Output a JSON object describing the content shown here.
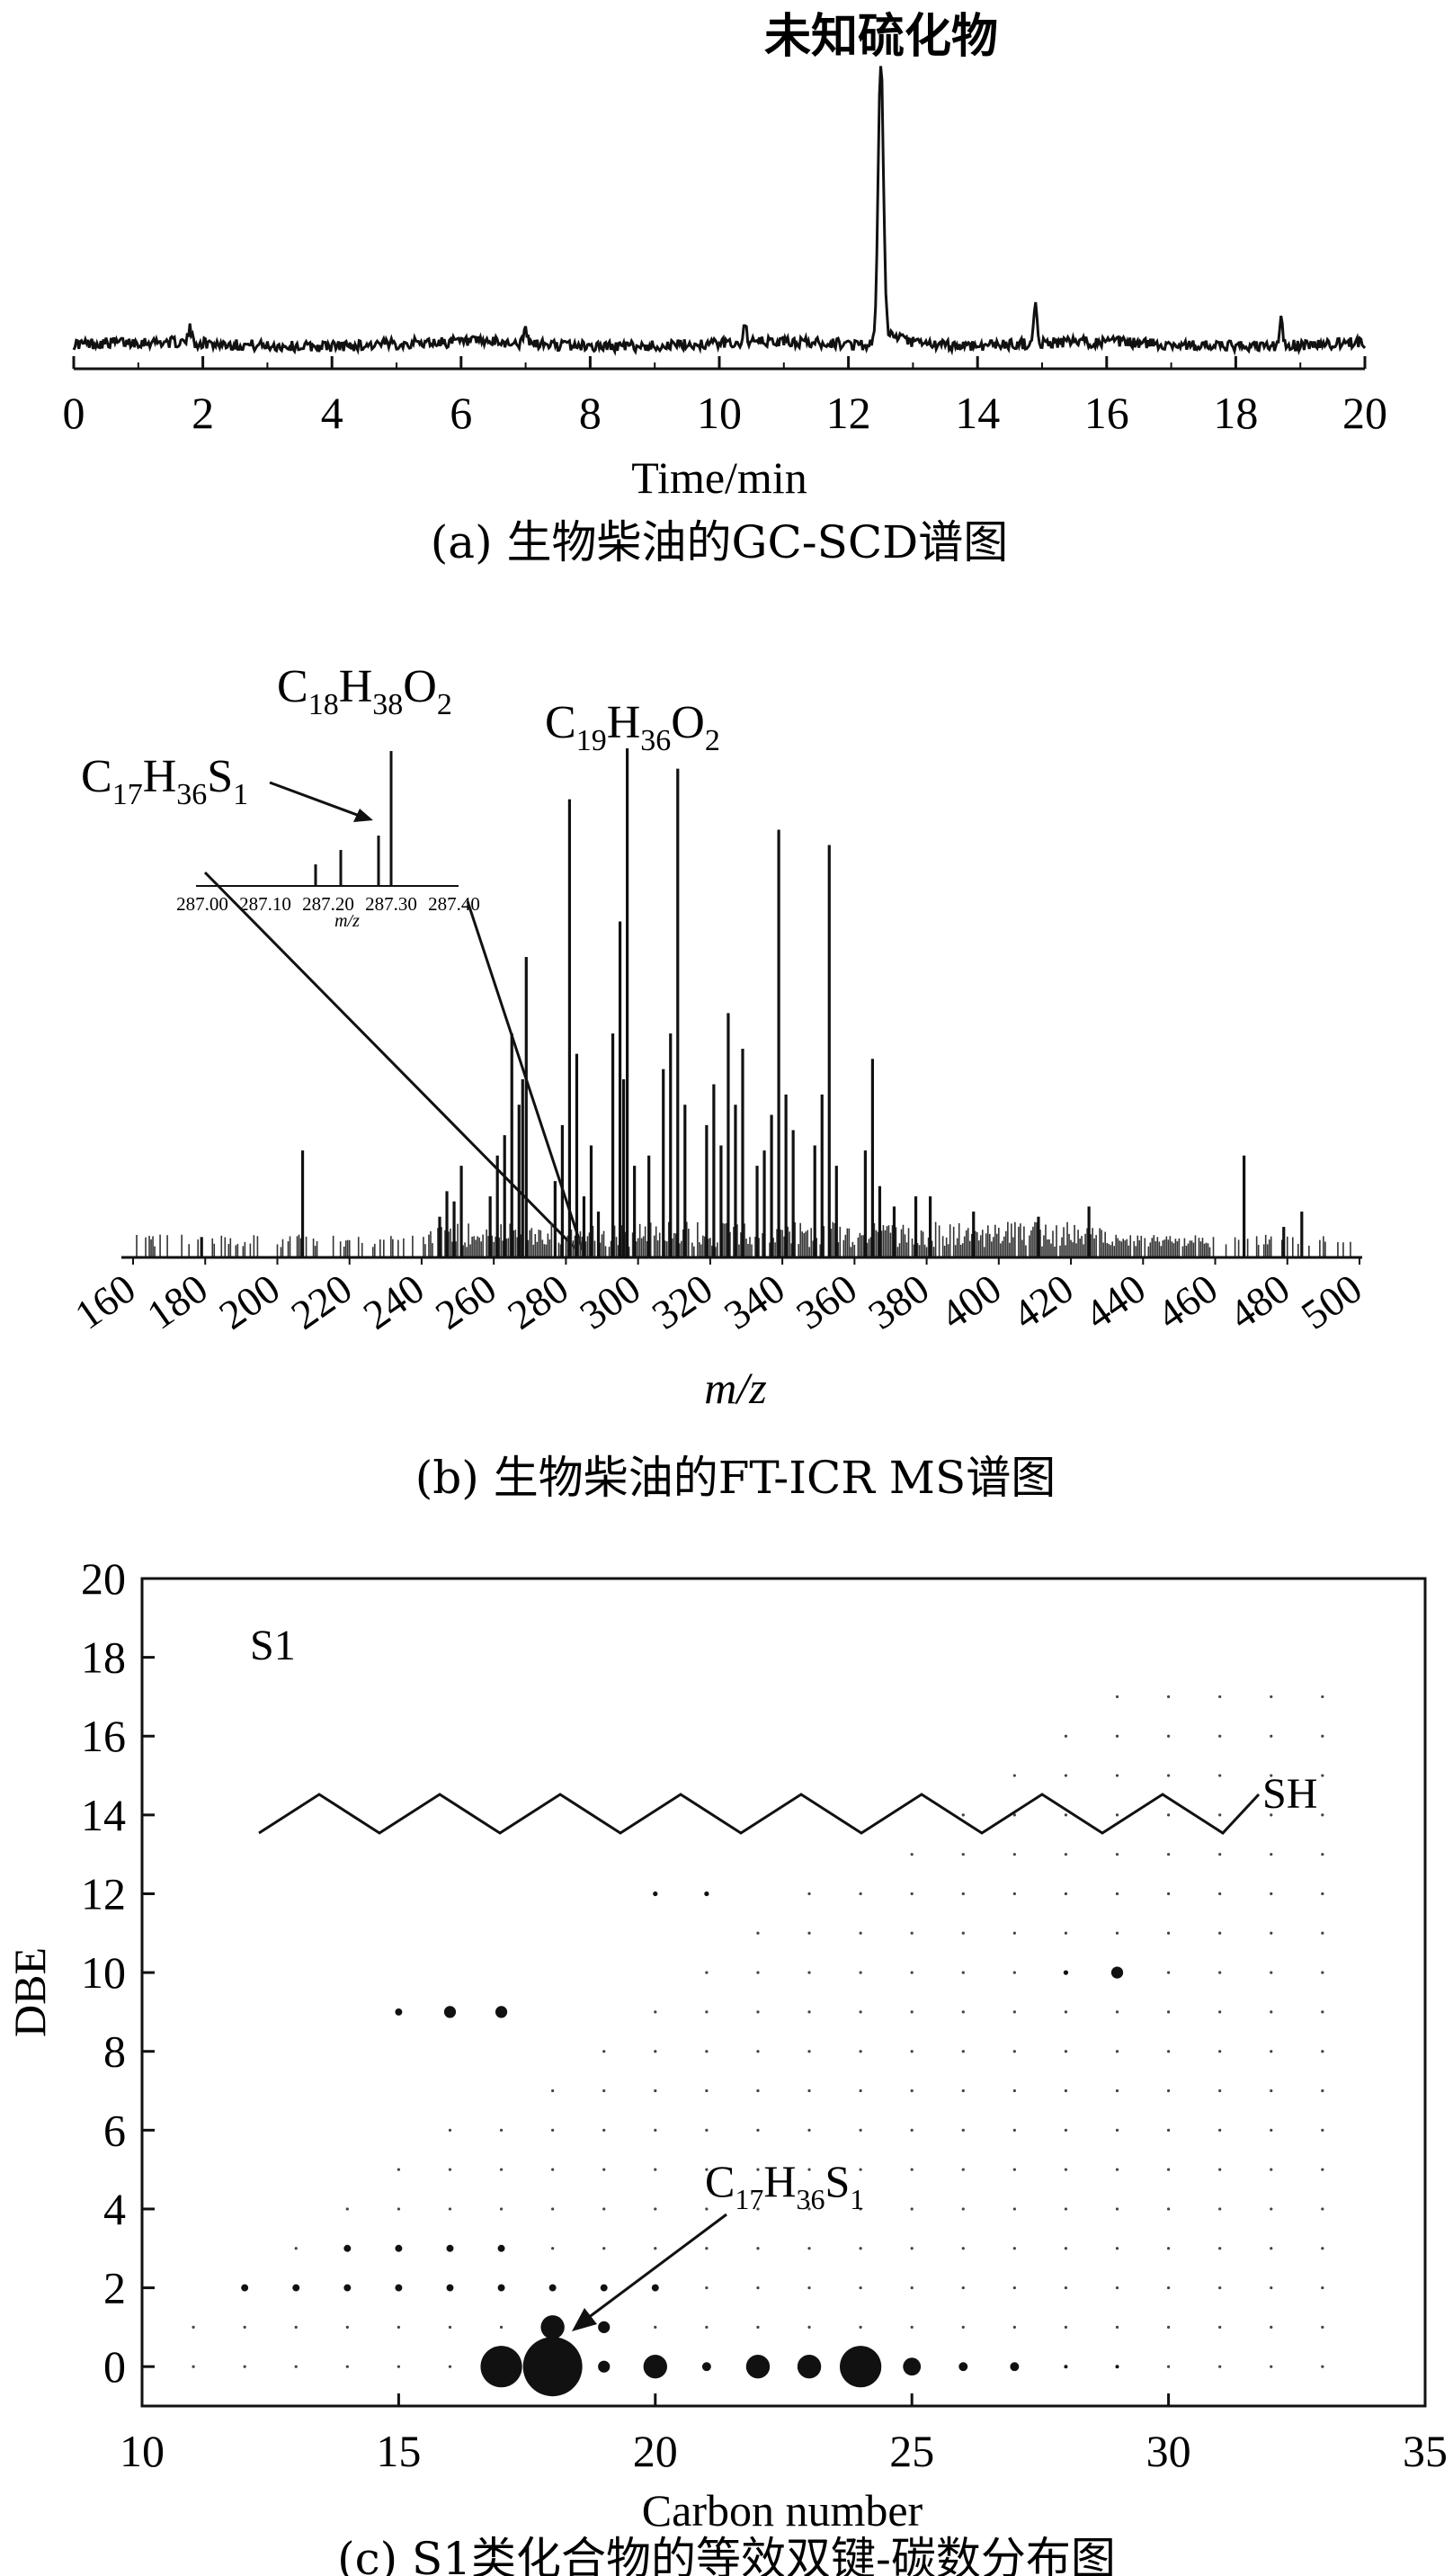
{
  "panel_a": {
    "caption": "(a) 生物柴油的GC-SCD谱图",
    "peak_label": "未知硫化物"
  },
  "panel_b": {
    "caption": "(b) 生物柴油的FT-ICR MS谱图",
    "inset_tick_labels": [
      "287.00",
      "287.10",
      "287.20",
      "287.30",
      "287.40"
    ],
    "inset_xlabel": "m/z",
    "formula_c17": {
      "c": "C",
      "c_sub": "17",
      "h": "H",
      "h_sub": "36",
      "s": "S",
      "s_sub": "1"
    },
    "formula_c18": {
      "c": "C",
      "c_sub": "18",
      "h": "H",
      "h_sub": "38",
      "o": "O",
      "o_sub": "2"
    },
    "formula_c19": {
      "c": "C",
      "c_sub": "19",
      "h": "H",
      "h_sub": "36",
      "o": "O",
      "o_sub": "2"
    }
  },
  "panel_c": {
    "caption": "(c) S1类化合物的等效双键-碳数分布图",
    "class_label": "S1",
    "structure_label": "SH",
    "formula": {
      "c": "C",
      "c_sub": "17",
      "h": "H",
      "h_sub": "36",
      "s": "S",
      "s_sub": "1"
    }
  },
  "chart_data": [
    {
      "type": "line",
      "xlabel": "Time/min",
      "ylabel": "",
      "xlim": [
        0,
        20
      ],
      "x_ticks": [
        0,
        2,
        4,
        6,
        8,
        10,
        12,
        14,
        16,
        18,
        20
      ],
      "grid": false,
      "peaks": [
        {
          "x": 12.5,
          "y": 1.0
        },
        {
          "x": 14.9,
          "y": 0.13
        },
        {
          "x": 18.7,
          "y": 0.09
        },
        {
          "x": 10.4,
          "y": 0.06
        },
        {
          "x": 7.0,
          "y": 0.05
        },
        {
          "x": 1.8,
          "y": 0.05
        }
      ],
      "baseline": 0.03
    },
    {
      "type": "bar",
      "xlabel": "m/z",
      "ylabel": "",
      "xlim": [
        160,
        500
      ],
      "x_ticks": [
        160,
        180,
        200,
        220,
        240,
        260,
        280,
        300,
        320,
        340,
        360,
        380,
        400,
        420,
        440,
        460,
        480,
        500
      ],
      "grid": false,
      "peaks": [
        {
          "x": 179,
          "y": 0.04
        },
        {
          "x": 207,
          "y": 0.21
        },
        {
          "x": 245,
          "y": 0.08
        },
        {
          "x": 247,
          "y": 0.13
        },
        {
          "x": 249,
          "y": 0.11
        },
        {
          "x": 251,
          "y": 0.18
        },
        {
          "x": 259,
          "y": 0.12
        },
        {
          "x": 261,
          "y": 0.2
        },
        {
          "x": 263,
          "y": 0.24
        },
        {
          "x": 265,
          "y": 0.44
        },
        {
          "x": 267,
          "y": 0.3
        },
        {
          "x": 268,
          "y": 0.35
        },
        {
          "x": 269,
          "y": 0.59
        },
        {
          "x": 277,
          "y": 0.15
        },
        {
          "x": 279,
          "y": 0.26
        },
        {
          "x": 281,
          "y": 0.9
        },
        {
          "x": 283,
          "y": 0.4
        },
        {
          "x": 285,
          "y": 0.12
        },
        {
          "x": 287,
          "y": 0.22
        },
        {
          "x": 289,
          "y": 0.09
        },
        {
          "x": 293,
          "y": 0.44
        },
        {
          "x": 295,
          "y": 0.66
        },
        {
          "x": 296,
          "y": 0.35
        },
        {
          "x": 297,
          "y": 1.0
        },
        {
          "x": 299,
          "y": 0.18
        },
        {
          "x": 303,
          "y": 0.2
        },
        {
          "x": 307,
          "y": 0.37
        },
        {
          "x": 309,
          "y": 0.44
        },
        {
          "x": 311,
          "y": 0.96
        },
        {
          "x": 313,
          "y": 0.3
        },
        {
          "x": 319,
          "y": 0.26
        },
        {
          "x": 321,
          "y": 0.34
        },
        {
          "x": 323,
          "y": 0.22
        },
        {
          "x": 325,
          "y": 0.48
        },
        {
          "x": 327,
          "y": 0.3
        },
        {
          "x": 329,
          "y": 0.41
        },
        {
          "x": 333,
          "y": 0.18
        },
        {
          "x": 335,
          "y": 0.21
        },
        {
          "x": 337,
          "y": 0.28
        },
        {
          "x": 339,
          "y": 0.84
        },
        {
          "x": 341,
          "y": 0.32
        },
        {
          "x": 343,
          "y": 0.25
        },
        {
          "x": 349,
          "y": 0.22
        },
        {
          "x": 351,
          "y": 0.32
        },
        {
          "x": 353,
          "y": 0.81
        },
        {
          "x": 355,
          "y": 0.18
        },
        {
          "x": 363,
          "y": 0.21
        },
        {
          "x": 365,
          "y": 0.39
        },
        {
          "x": 367,
          "y": 0.14
        },
        {
          "x": 371,
          "y": 0.1
        },
        {
          "x": 377,
          "y": 0.12
        },
        {
          "x": 381,
          "y": 0.12
        },
        {
          "x": 393,
          "y": 0.09
        },
        {
          "x": 411,
          "y": 0.08
        },
        {
          "x": 425,
          "y": 0.1
        },
        {
          "x": 468,
          "y": 0.2
        },
        {
          "x": 479,
          "y": 0.06
        },
        {
          "x": 484,
          "y": 0.09
        }
      ],
      "baseline": 0.02
    },
    {
      "type": "scatter",
      "xlabel": "Carbon number",
      "ylabel": "DBE",
      "xlim": [
        10,
        35
      ],
      "ylim": [
        -1,
        20
      ],
      "x_ticks": [
        10,
        15,
        20,
        25,
        30,
        35
      ],
      "y_ticks": [
        0,
        2,
        4,
        6,
        8,
        10,
        12,
        14,
        16,
        18,
        20
      ],
      "grid": false,
      "points": [
        {
          "x": 17,
          "y": 0,
          "size": 7
        },
        {
          "x": 18,
          "y": 0,
          "size": 10
        },
        {
          "x": 19,
          "y": 0,
          "size": 2
        },
        {
          "x": 20,
          "y": 0,
          "size": 4
        },
        {
          "x": 21,
          "y": 0,
          "size": 1.5
        },
        {
          "x": 22,
          "y": 0,
          "size": 4
        },
        {
          "x": 23,
          "y": 0,
          "size": 4
        },
        {
          "x": 24,
          "y": 0,
          "size": 7
        },
        {
          "x": 25,
          "y": 0,
          "size": 3
        },
        {
          "x": 26,
          "y": 0,
          "size": 1.5
        },
        {
          "x": 27,
          "y": 0,
          "size": 1.5
        },
        {
          "x": 28,
          "y": 0,
          "size": 0.6
        },
        {
          "x": 29,
          "y": 0,
          "size": 0.6
        },
        {
          "x": 18,
          "y": 1,
          "size": 4
        },
        {
          "x": 19,
          "y": 1,
          "size": 2
        },
        {
          "x": 16,
          "y": 9,
          "size": 2
        },
        {
          "x": 17,
          "y": 9,
          "size": 2
        },
        {
          "x": 15,
          "y": 9,
          "size": 1.2
        },
        {
          "x": 29,
          "y": 10,
          "size": 2
        },
        {
          "x": 28,
          "y": 10,
          "size": 0.8
        },
        {
          "x": 12,
          "y": 2,
          "size": 1.2
        },
        {
          "x": 13,
          "y": 2,
          "size": 1.2
        },
        {
          "x": 14,
          "y": 2,
          "size": 1.2
        },
        {
          "x": 15,
          "y": 2,
          "size": 1.2
        },
        {
          "x": 16,
          "y": 2,
          "size": 1.2
        },
        {
          "x": 17,
          "y": 2,
          "size": 1.2
        },
        {
          "x": 18,
          "y": 2,
          "size": 1.2
        },
        {
          "x": 19,
          "y": 2,
          "size": 1.2
        },
        {
          "x": 20,
          "y": 2,
          "size": 1.2
        },
        {
          "x": 14,
          "y": 3,
          "size": 1.2
        },
        {
          "x": 15,
          "y": 3,
          "size": 1.2
        },
        {
          "x": 16,
          "y": 3,
          "size": 1.2
        },
        {
          "x": 17,
          "y": 3,
          "size": 1.2
        },
        {
          "x": 21,
          "y": 12,
          "size": 0.8
        },
        {
          "x": 20,
          "y": 12,
          "size": 0.8
        }
      ],
      "grid_points": {
        "x_range": [
          11,
          33
        ],
        "y_range": [
          0,
          17
        ],
        "size": 0.5
      }
    }
  ]
}
